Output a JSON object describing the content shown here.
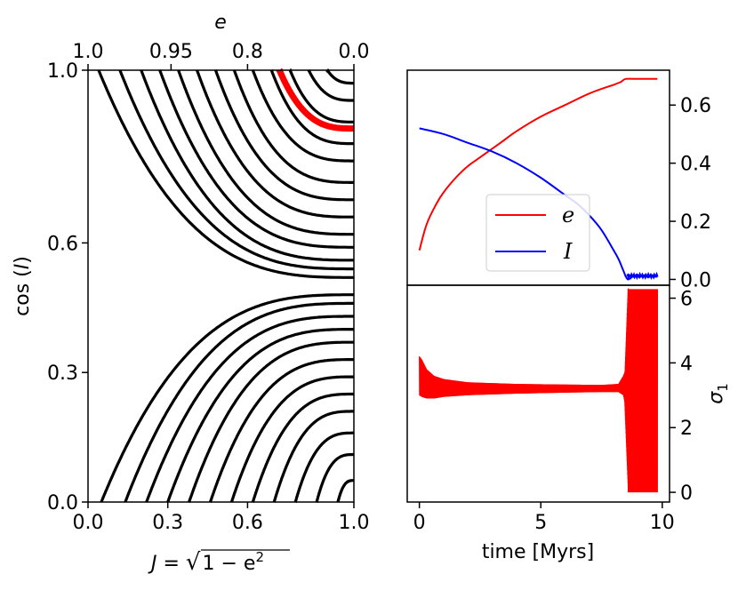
{
  "chart_data": [
    {
      "id": "phase-portrait",
      "type": "line",
      "xlabel": "J = √(1 − e²)",
      "xlabel_parts": {
        "lhs": "J = ",
        "radical": "√",
        "radicand": "1 − e",
        "exp": "2"
      },
      "ylabel": "cos (I)",
      "ylabel_parts": {
        "func": "cos",
        "arg": "I"
      },
      "xlim": [
        0.0,
        1.0
      ],
      "ylim": [
        0.0,
        1.0
      ],
      "x_ticks": [
        0.0,
        0.3,
        0.6,
        1.0
      ],
      "x_tick_labels": [
        "0.0",
        "0.3",
        "0.6",
        "1.0"
      ],
      "y_ticks": [
        0.0,
        0.3,
        0.6,
        1.0
      ],
      "y_tick_labels": [
        "0.0",
        "0.3",
        "0.6",
        "1.0"
      ],
      "top_axis": {
        "label": "e",
        "ticks_e": [
          1.0,
          0.95,
          0.8,
          0.0
        ],
        "tick_labels": [
          "1.0",
          "0.95",
          "0.8",
          "0.0"
        ]
      },
      "separatrix_cos_I": 0.5,
      "curves": {
        "color": "#000000",
        "upper_asymptote_J": [
          0.04,
          0.12,
          0.2,
          0.27,
          0.34,
          0.41,
          0.48,
          0.55,
          0.62,
          0.69,
          0.76,
          0.83,
          0.9
        ],
        "upper_approach": [
          0.52,
          0.54,
          0.56,
          0.59,
          0.62,
          0.66,
          0.7,
          0.74,
          0.79,
          0.83,
          0.88,
          0.93,
          0.97
        ],
        "lower_asymptote_J": [
          0.05,
          0.14,
          0.22,
          0.3,
          0.38,
          0.46,
          0.54,
          0.62,
          0.7,
          0.78,
          0.86,
          0.94
        ],
        "lower_approach": [
          0.48,
          0.46,
          0.43,
          0.4,
          0.37,
          0.33,
          0.29,
          0.25,
          0.21,
          0.16,
          0.11,
          0.05
        ]
      },
      "highlight": {
        "color": "#ff0000",
        "asymptote_J": 0.72,
        "approach": 0.865
      }
    },
    {
      "id": "e-I-evolution",
      "type": "line",
      "xlim": [
        -0.5,
        10.3
      ],
      "ylim": [
        -0.02,
        0.72
      ],
      "y_ticks": [
        0.0,
        0.2,
        0.4,
        0.6
      ],
      "y_tick_labels": [
        "0.0",
        "0.2",
        "0.4",
        "0.6"
      ],
      "y_axis_side": "right",
      "legend": {
        "position": "center-right",
        "entries": [
          "e",
          "I"
        ]
      },
      "series": [
        {
          "name": "e",
          "color": "#ff0000",
          "x": [
            0,
            0.3,
            0.7,
            1.0,
            1.5,
            2.0,
            2.5,
            3.0,
            3.5,
            4.0,
            5.0,
            6.0,
            7.0,
            8.0,
            8.3,
            8.5,
            9.0,
            9.5,
            9.8
          ],
          "y": [
            0.1,
            0.19,
            0.26,
            0.3,
            0.35,
            0.39,
            0.42,
            0.45,
            0.48,
            0.51,
            0.56,
            0.6,
            0.64,
            0.67,
            0.68,
            0.69,
            0.69,
            0.69,
            0.69
          ]
        },
        {
          "name": "I",
          "color": "#0000ff",
          "x": [
            0,
            1.0,
            2.0,
            3.0,
            4.0,
            5.0,
            6.0,
            6.5,
            7.0,
            7.5,
            8.0,
            8.2,
            8.4,
            8.5,
            8.6,
            8.8,
            9.0,
            9.5,
            9.8
          ],
          "y": [
            0.52,
            0.5,
            0.47,
            0.44,
            0.4,
            0.35,
            0.29,
            0.26,
            0.22,
            0.17,
            0.1,
            0.07,
            0.03,
            0.01,
            0.0,
            0.01,
            0.01,
            0.01,
            0.01
          ]
        }
      ]
    },
    {
      "id": "sigma1-evolution",
      "type": "line",
      "xlabel": "time [Myrs]",
      "ylabel": "σ₁",
      "ylabel_parts": {
        "base": "σ",
        "sub": "1"
      },
      "xlim": [
        -0.5,
        10.3
      ],
      "ylim": [
        -0.3,
        6.4
      ],
      "x_ticks": [
        0,
        5,
        10
      ],
      "x_tick_labels": [
        "0",
        "5",
        "10"
      ],
      "y_ticks": [
        0,
        2,
        4,
        6
      ],
      "y_tick_labels": [
        "0",
        "2",
        "4",
        "6"
      ],
      "y_axis_side": "right",
      "series": [
        {
          "name": "σ1 upper envelope",
          "color": "#ff0000",
          "x": [
            0,
            0.1,
            0.3,
            0.6,
            1.0,
            2.0,
            4.0,
            6.0,
            7.5,
            8.2,
            8.4,
            8.5
          ],
          "y": [
            4.2,
            4.1,
            3.8,
            3.6,
            3.5,
            3.4,
            3.35,
            3.33,
            3.32,
            3.35,
            3.6,
            3.8
          ]
        },
        {
          "name": "σ1 lower envelope",
          "color": "#ff0000",
          "x": [
            0,
            0.1,
            0.3,
            0.6,
            1.0,
            2.0,
            4.0,
            6.0,
            7.5,
            8.2,
            8.4,
            8.5
          ],
          "y": [
            3.0,
            2.95,
            2.9,
            2.9,
            2.95,
            3.0,
            3.05,
            3.08,
            3.1,
            3.1,
            3.0,
            2.6
          ]
        },
        {
          "name": "σ1 circulation band",
          "color": "#ff0000",
          "x": [
            8.6,
            9.8
          ],
          "ymin": 0.0,
          "ymax": 6.28
        }
      ]
    }
  ]
}
